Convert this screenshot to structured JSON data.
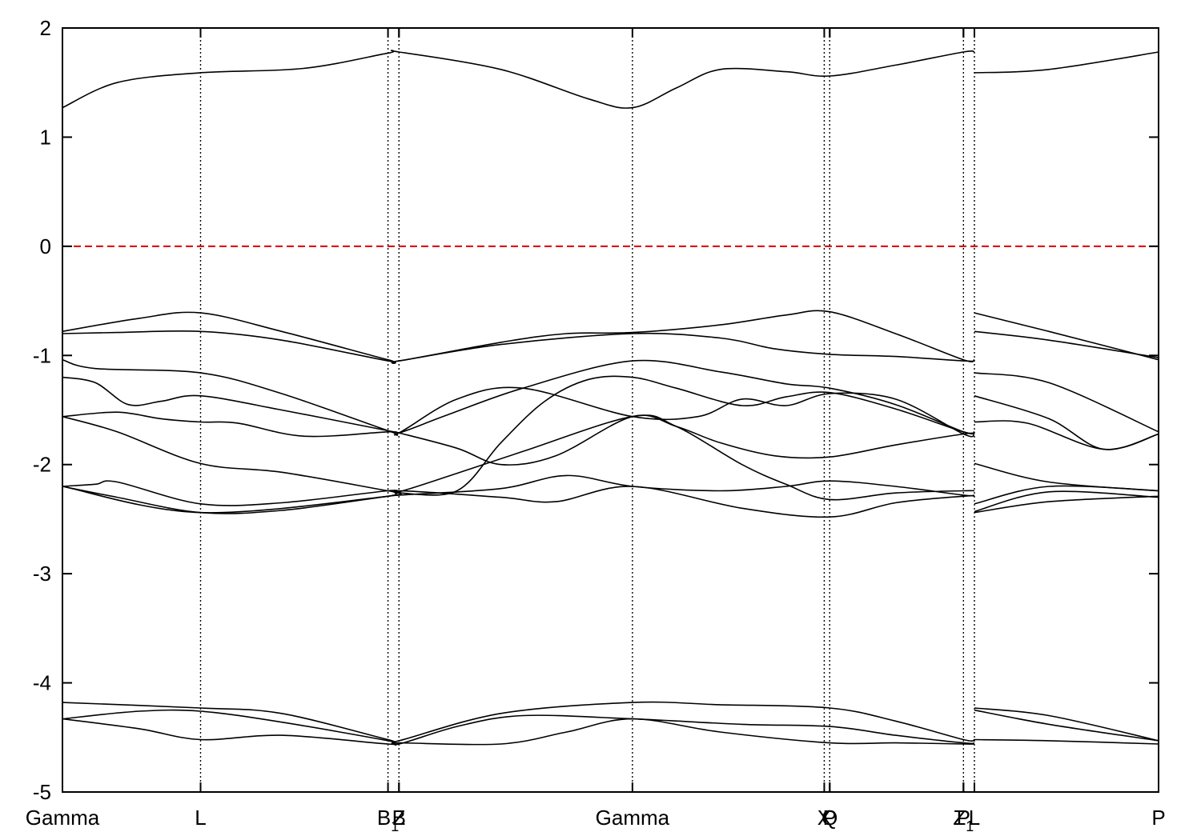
{
  "chart_data": {
    "type": "line",
    "title": "",
    "xlabel": "",
    "ylabel": "",
    "ylim": [
      -5,
      2
    ],
    "yticks": [
      "2",
      "1",
      "0",
      "-1",
      "-2",
      "-3",
      "-4",
      "-5"
    ],
    "xlim": [
      0,
      1
    ],
    "grid": "vertical dotted lines at high-symmetry points",
    "fermi_level": {
      "value": 0,
      "color": "#dd0000",
      "style": "dashed"
    },
    "kpoints": [
      {
        "label": "Gamma",
        "sub": "",
        "x": 0.0
      },
      {
        "label": "L",
        "sub": "",
        "x": 0.126
      },
      {
        "label": "B",
        "sub": "1",
        "x": 0.297
      },
      {
        "label": "Z",
        "sub": "",
        "x": 0.307
      },
      {
        "label": "B",
        "sub": "",
        "x": 0.307
      },
      {
        "label": "Gamma",
        "sub": "",
        "x": 0.52
      },
      {
        "label": "X",
        "sub": "",
        "x": 0.695
      },
      {
        "label": "P",
        "sub": "",
        "x": 0.7
      },
      {
        "label": "Q",
        "sub": "",
        "x": 0.7
      },
      {
        "label": "P",
        "sub": "",
        "x": 0.822
      },
      {
        "label": "Z",
        "sub": "1",
        "x": 0.822
      },
      {
        "label": "L",
        "sub": "",
        "x": 0.832
      },
      {
        "label": "P",
        "sub": "",
        "x": 1.0
      }
    ],
    "vlines": [
      0.126,
      0.297,
      0.307,
      0.52,
      0.695,
      0.7,
      0.822,
      0.832
    ],
    "line_color": "#000000",
    "series": [
      {
        "points": [
          [
            0,
            1.27
          ],
          [
            0.05,
            1.5
          ],
          [
            0.126,
            1.59
          ],
          [
            0.22,
            1.63
          ],
          [
            0.297,
            1.77
          ],
          [
            0.307,
            1.78
          ],
          [
            0.4,
            1.62
          ],
          [
            0.48,
            1.35
          ],
          [
            0.52,
            1.27
          ],
          [
            0.56,
            1.45
          ],
          [
            0.6,
            1.62
          ],
          [
            0.66,
            1.6
          ],
          [
            0.7,
            1.56
          ],
          [
            0.76,
            1.66
          ],
          [
            0.822,
            1.78
          ],
          [
            0.832,
            1.78
          ]
        ]
      },
      {
        "points": [
          [
            0.832,
            1.59
          ],
          [
            0.9,
            1.62
          ],
          [
            1.0,
            1.78
          ]
        ]
      },
      {
        "points": [
          [
            0,
            -0.78
          ],
          [
            0.07,
            -0.66
          ],
          [
            0.126,
            -0.61
          ],
          [
            0.2,
            -0.78
          ],
          [
            0.297,
            -1.04
          ],
          [
            0.307,
            -1.05
          ],
          [
            0.4,
            -0.88
          ],
          [
            0.46,
            -0.8
          ],
          [
            0.52,
            -0.79
          ],
          [
            0.6,
            -0.72
          ],
          [
            0.66,
            -0.63
          ],
          [
            0.7,
            -0.6
          ],
          [
            0.76,
            -0.8
          ],
          [
            0.822,
            -1.04
          ],
          [
            0.832,
            -1.04
          ]
        ]
      },
      {
        "points": [
          [
            0.832,
            -0.61
          ],
          [
            0.9,
            -0.78
          ],
          [
            1.0,
            -1.04
          ]
        ]
      },
      {
        "points": [
          [
            0,
            -0.8
          ],
          [
            0.05,
            -0.79
          ],
          [
            0.126,
            -0.78
          ],
          [
            0.2,
            -0.86
          ],
          [
            0.297,
            -1.05
          ],
          [
            0.307,
            -1.05
          ],
          [
            0.4,
            -0.9
          ],
          [
            0.52,
            -0.8
          ],
          [
            0.6,
            -0.84
          ],
          [
            0.65,
            -0.94
          ],
          [
            0.7,
            -0.99
          ],
          [
            0.76,
            -1.01
          ],
          [
            0.822,
            -1.05
          ],
          [
            0.832,
            -1.05
          ]
        ]
      },
      {
        "points": [
          [
            0.832,
            -0.78
          ],
          [
            0.9,
            -0.86
          ],
          [
            1.0,
            -1.02
          ]
        ]
      },
      {
        "points": [
          [
            0,
            -1.04
          ],
          [
            0.03,
            -1.12
          ],
          [
            0.126,
            -1.16
          ],
          [
            0.2,
            -1.35
          ],
          [
            0.297,
            -1.69
          ],
          [
            0.307,
            -1.71
          ],
          [
            0.35,
            -1.55
          ],
          [
            0.42,
            -1.3
          ],
          [
            0.52,
            -1.05
          ],
          [
            0.6,
            -1.15
          ],
          [
            0.66,
            -1.26
          ],
          [
            0.7,
            -1.3
          ],
          [
            0.76,
            -1.45
          ],
          [
            0.822,
            -1.7
          ],
          [
            0.832,
            -1.7
          ]
        ]
      },
      {
        "points": [
          [
            0.832,
            -1.16
          ],
          [
            0.9,
            -1.25
          ],
          [
            1.0,
            -1.7
          ]
        ]
      },
      {
        "points": [
          [
            0,
            -1.2
          ],
          [
            0.03,
            -1.25
          ],
          [
            0.06,
            -1.45
          ],
          [
            0.09,
            -1.42
          ],
          [
            0.126,
            -1.37
          ],
          [
            0.2,
            -1.5
          ],
          [
            0.297,
            -1.69
          ],
          [
            0.307,
            -1.71
          ],
          [
            0.36,
            -1.85
          ],
          [
            0.4,
            -2.0
          ],
          [
            0.45,
            -1.92
          ],
          [
            0.52,
            -1.56
          ],
          [
            0.56,
            -1.65
          ],
          [
            0.6,
            -1.8
          ],
          [
            0.65,
            -1.92
          ],
          [
            0.7,
            -1.93
          ],
          [
            0.76,
            -1.82
          ],
          [
            0.822,
            -1.72
          ],
          [
            0.832,
            -1.72
          ]
        ]
      },
      {
        "points": [
          [
            0.832,
            -1.37
          ],
          [
            0.9,
            -1.58
          ],
          [
            0.95,
            -1.86
          ],
          [
            1.0,
            -1.72
          ]
        ]
      },
      {
        "points": [
          [
            0,
            -1.56
          ],
          [
            0.05,
            -1.52
          ],
          [
            0.09,
            -1.58
          ],
          [
            0.126,
            -1.61
          ],
          [
            0.16,
            -1.62
          ],
          [
            0.22,
            -1.74
          ],
          [
            0.297,
            -1.7
          ],
          [
            0.307,
            -1.71
          ],
          [
            0.36,
            -1.4
          ],
          [
            0.42,
            -1.3
          ],
          [
            0.52,
            -1.56
          ],
          [
            0.58,
            -1.56
          ],
          [
            0.62,
            -1.4
          ],
          [
            0.66,
            -1.46
          ],
          [
            0.7,
            -1.35
          ],
          [
            0.76,
            -1.4
          ],
          [
            0.822,
            -1.72
          ],
          [
            0.832,
            -1.72
          ]
        ]
      },
      {
        "points": [
          [
            0.832,
            -1.61
          ],
          [
            0.88,
            -1.62
          ],
          [
            0.95,
            -1.86
          ],
          [
            1.0,
            -1.72
          ]
        ]
      },
      {
        "points": [
          [
            0,
            -1.56
          ],
          [
            0.05,
            -1.7
          ],
          [
            0.126,
            -1.99
          ],
          [
            0.2,
            -2.07
          ],
          [
            0.297,
            -2.24
          ],
          [
            0.307,
            -2.25
          ],
          [
            0.36,
            -2.08
          ],
          [
            0.42,
            -1.88
          ],
          [
            0.52,
            -1.56
          ],
          [
            0.56,
            -1.65
          ],
          [
            0.62,
            -2.0
          ],
          [
            0.66,
            -2.18
          ],
          [
            0.7,
            -2.32
          ],
          [
            0.76,
            -2.26
          ],
          [
            0.822,
            -2.24
          ],
          [
            0.832,
            -2.24
          ]
        ]
      },
      {
        "points": [
          [
            0.832,
            -1.99
          ],
          [
            0.9,
            -2.16
          ],
          [
            1.0,
            -2.24
          ]
        ]
      },
      {
        "points": [
          [
            0,
            -2.2
          ],
          [
            0.03,
            -2.18
          ],
          [
            0.05,
            -2.16
          ],
          [
            0.126,
            -2.36
          ],
          [
            0.2,
            -2.35
          ],
          [
            0.297,
            -2.24
          ],
          [
            0.307,
            -2.26
          ],
          [
            0.36,
            -2.24
          ],
          [
            0.4,
            -1.8
          ],
          [
            0.44,
            -1.42
          ],
          [
            0.48,
            -1.22
          ],
          [
            0.52,
            -1.2
          ],
          [
            0.56,
            -1.3
          ],
          [
            0.62,
            -1.46
          ],
          [
            0.66,
            -1.38
          ],
          [
            0.7,
            -1.34
          ],
          [
            0.76,
            -1.49
          ],
          [
            0.822,
            -1.7
          ],
          [
            0.832,
            -1.7
          ]
        ]
      },
      {
        "points": [
          [
            0.832,
            -2.36
          ],
          [
            0.9,
            -2.2
          ],
          [
            1.0,
            -2.24
          ]
        ]
      },
      {
        "points": [
          [
            0,
            -2.2
          ],
          [
            0.05,
            -2.3
          ],
          [
            0.126,
            -2.44
          ],
          [
            0.2,
            -2.42
          ],
          [
            0.297,
            -2.29
          ],
          [
            0.307,
            -2.28
          ],
          [
            0.4,
            -2.22
          ],
          [
            0.46,
            -2.1
          ],
          [
            0.52,
            -2.2
          ],
          [
            0.6,
            -2.24
          ],
          [
            0.66,
            -2.2
          ],
          [
            0.7,
            -2.15
          ],
          [
            0.76,
            -2.2
          ],
          [
            0.822,
            -2.28
          ],
          [
            0.832,
            -2.28
          ]
        ]
      },
      {
        "points": [
          [
            0.832,
            -2.44
          ],
          [
            0.9,
            -2.34
          ],
          [
            1.0,
            -2.29
          ]
        ]
      },
      {
        "points": [
          [
            0,
            -2.2
          ],
          [
            0.126,
            -2.44
          ],
          [
            0.297,
            -2.29
          ],
          [
            0.307,
            -2.24
          ],
          [
            0.4,
            -2.3
          ],
          [
            0.45,
            -2.34
          ],
          [
            0.52,
            -2.2
          ],
          [
            0.62,
            -2.4
          ],
          [
            0.7,
            -2.48
          ],
          [
            0.76,
            -2.35
          ],
          [
            0.822,
            -2.29
          ],
          [
            0.832,
            -2.29
          ]
        ]
      },
      {
        "points": [
          [
            0.832,
            -2.43
          ],
          [
            0.9,
            -2.25
          ],
          [
            1.0,
            -2.3
          ]
        ]
      },
      {
        "points": [
          [
            0,
            -4.18
          ],
          [
            0.126,
            -4.23
          ],
          [
            0.2,
            -4.28
          ],
          [
            0.297,
            -4.52
          ],
          [
            0.307,
            -4.53
          ],
          [
            0.4,
            -4.28
          ],
          [
            0.52,
            -4.18
          ],
          [
            0.6,
            -4.2
          ],
          [
            0.7,
            -4.23
          ],
          [
            0.76,
            -4.35
          ],
          [
            0.822,
            -4.52
          ],
          [
            0.832,
            -4.52
          ]
        ]
      },
      {
        "points": [
          [
            0.832,
            -4.23
          ],
          [
            0.9,
            -4.3
          ],
          [
            1.0,
            -4.53
          ]
        ]
      },
      {
        "points": [
          [
            0,
            -4.33
          ],
          [
            0.07,
            -4.26
          ],
          [
            0.126,
            -4.26
          ],
          [
            0.2,
            -4.36
          ],
          [
            0.297,
            -4.53
          ],
          [
            0.307,
            -4.56
          ],
          [
            0.36,
            -4.4
          ],
          [
            0.42,
            -4.3
          ],
          [
            0.52,
            -4.33
          ],
          [
            0.62,
            -4.38
          ],
          [
            0.7,
            -4.4
          ],
          [
            0.76,
            -4.48
          ],
          [
            0.822,
            -4.55
          ],
          [
            0.832,
            -4.55
          ]
        ]
      },
      {
        "points": [
          [
            0.832,
            -4.25
          ],
          [
            0.9,
            -4.38
          ],
          [
            1.0,
            -4.53
          ]
        ]
      },
      {
        "points": [
          [
            0,
            -4.33
          ],
          [
            0.07,
            -4.42
          ],
          [
            0.126,
            -4.52
          ],
          [
            0.2,
            -4.48
          ],
          [
            0.297,
            -4.56
          ],
          [
            0.307,
            -4.55
          ],
          [
            0.4,
            -4.56
          ],
          [
            0.46,
            -4.45
          ],
          [
            0.52,
            -4.33
          ],
          [
            0.6,
            -4.45
          ],
          [
            0.7,
            -4.55
          ],
          [
            0.76,
            -4.55
          ],
          [
            0.822,
            -4.56
          ],
          [
            0.832,
            -4.56
          ]
        ]
      },
      {
        "points": [
          [
            0.832,
            -4.52
          ],
          [
            0.9,
            -4.53
          ],
          [
            1.0,
            -4.56
          ]
        ]
      }
    ]
  }
}
